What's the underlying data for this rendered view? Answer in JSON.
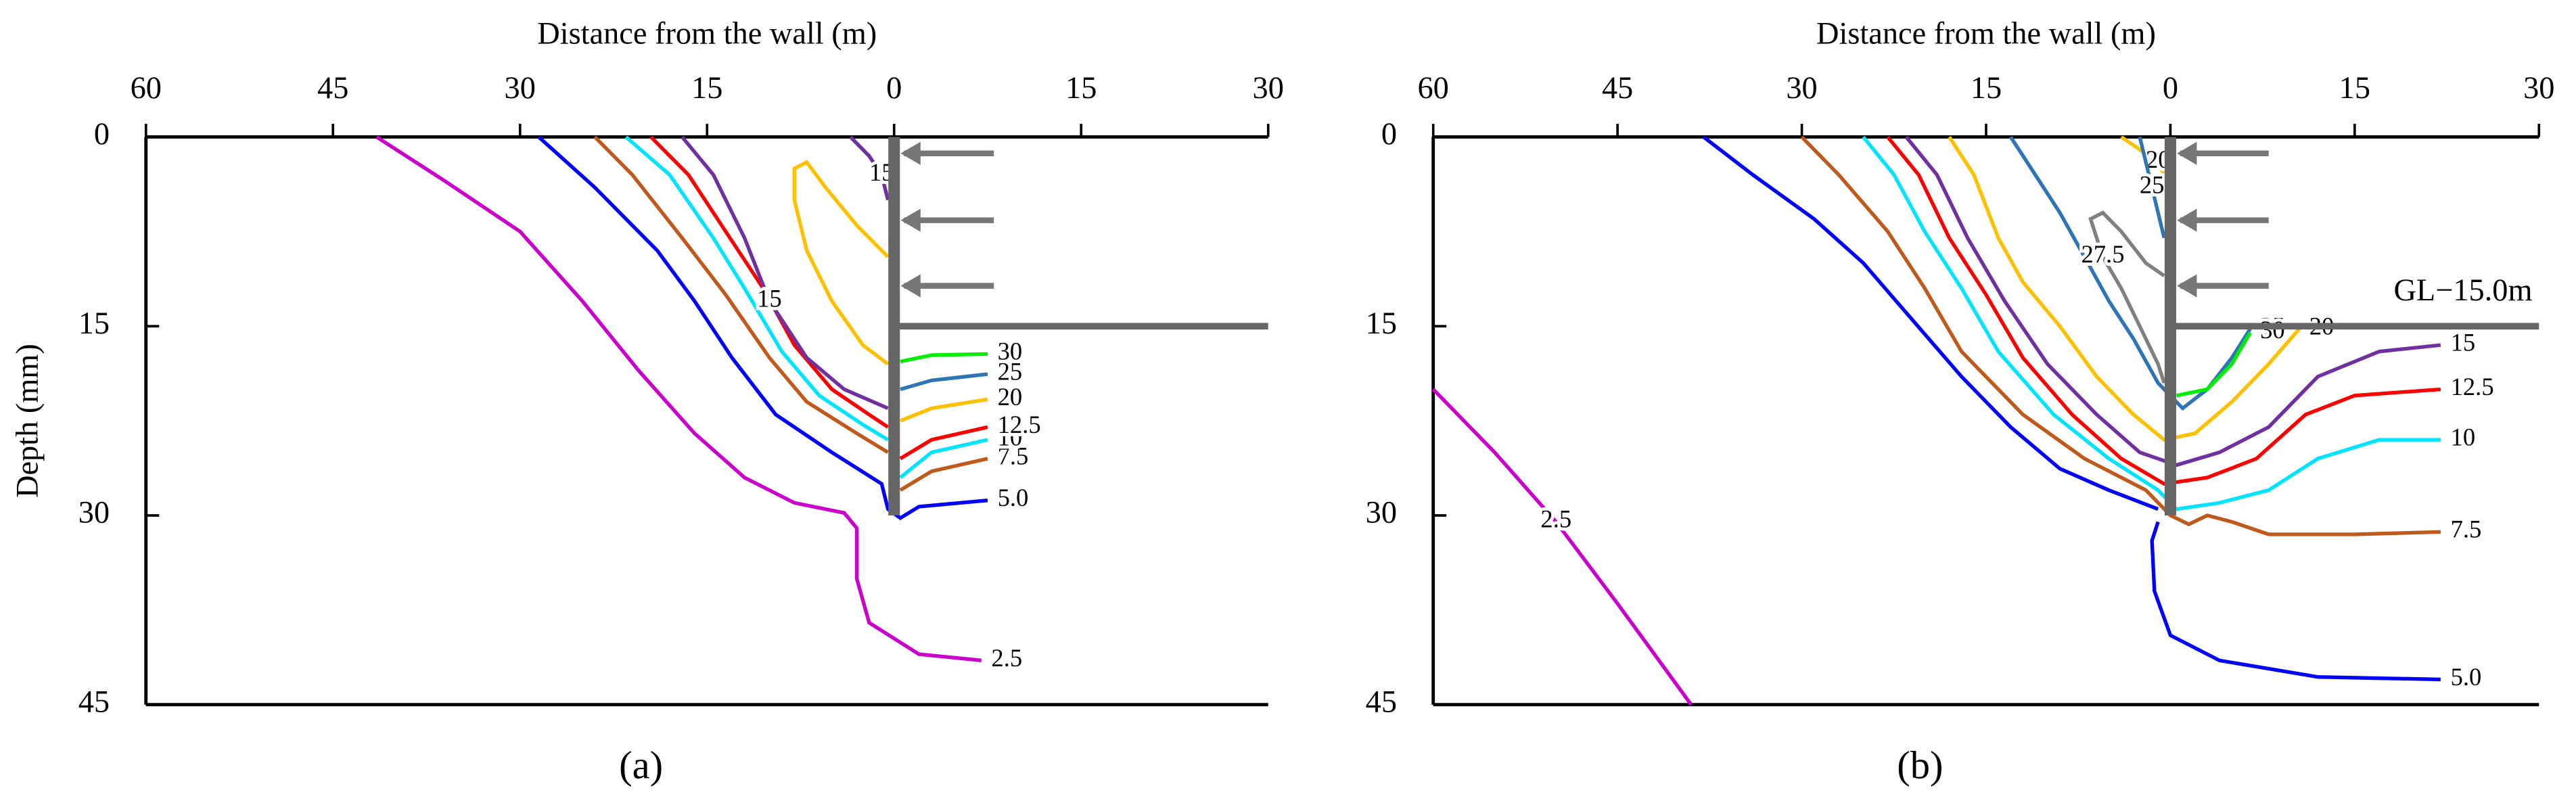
{
  "chart_data": [
    {
      "type": "contour",
      "panel_label": "(a)",
      "x_label": "Distance from the wall (m)",
      "y_label": "Depth (mm)",
      "xlim": [
        -60,
        30
      ],
      "ylim": [
        0,
        45
      ],
      "y_inverted": true,
      "xticks": [
        {
          "value": -60,
          "label": "60"
        },
        {
          "value": -45,
          "label": "45"
        },
        {
          "value": -30,
          "label": "30"
        },
        {
          "value": -15,
          "label": "15"
        },
        0,
        15,
        30
      ],
      "yticks": [
        0,
        15,
        30,
        45
      ],
      "contours": [
        {
          "level": 2.5,
          "color": "#cc00cc",
          "x": [
            -41.5,
            -36,
            -30,
            -25,
            -20.5,
            -16,
            -12,
            -8,
            -4,
            -3,
            -3,
            -2,
            2,
            7
          ],
          "y": [
            0,
            3.5,
            7.5,
            13,
            18.5,
            23.5,
            27,
            29,
            29.8,
            31,
            35,
            38.5,
            41,
            41.5
          ]
        },
        {
          "level": 5,
          "level_label": "5.0",
          "color": "#0000ff",
          "x": [
            -28.5,
            -24,
            -19,
            -16,
            -13,
            -9.5,
            -5,
            -1,
            -0.5,
            0.5,
            2,
            7.5
          ],
          "y": [
            0,
            4,
            9,
            13,
            17.5,
            22,
            25,
            27.5,
            29.5,
            30.2,
            29.3,
            28.8
          ]
        },
        {
          "level": 7.5,
          "color": "#c05a1c",
          "x": [
            -24,
            -21,
            -17,
            -13.5,
            -10,
            -7,
            -3,
            -0.5,
            null,
            0.5,
            3,
            7.5
          ],
          "y": [
            0,
            3,
            8,
            12.5,
            17.5,
            21,
            23.5,
            25,
            null,
            28,
            26.5,
            25.5
          ]
        },
        {
          "level": 10,
          "color": "#00e5ff",
          "x": [
            -21.5,
            -18,
            -14.5,
            -12,
            -9,
            -6,
            -2.5,
            -0.5,
            null,
            0.5,
            3,
            7.5
          ],
          "y": [
            0,
            3,
            8,
            12,
            17,
            20.5,
            22.8,
            24,
            null,
            27,
            25,
            24
          ]
        },
        {
          "level": 12.5,
          "color": "#ff0000",
          "x": [
            -19.5,
            -16.5,
            -13.5,
            -10.5,
            -8,
            -5,
            -2,
            -0.5,
            null,
            0.5,
            3,
            7.5
          ],
          "y": [
            0,
            3,
            7.5,
            12,
            16.5,
            20,
            22,
            23,
            null,
            25.5,
            24,
            23
          ]
        },
        {
          "level": 15,
          "color": "#7030a0",
          "x": [
            -17,
            -14.5,
            -12,
            -10,
            -7,
            -4,
            -0.5
          ],
          "y": [
            0,
            3,
            8,
            13,
            17.5,
            20,
            21.5
          ]
        },
        {
          "level": 15,
          "color": "#7030a0",
          "x": [
            -3.5,
            -2,
            -1,
            -0.5
          ],
          "y": [
            0,
            1.5,
            3,
            5
          ]
        },
        {
          "level": 20,
          "color": "#ffc000",
          "x": [
            -0.5,
            -3,
            -5.5,
            -7,
            -8,
            -8,
            -7,
            -5,
            -2.5,
            -0.5,
            null,
            0.5,
            3,
            7.5
          ],
          "y": [
            9.5,
            7,
            4,
            2,
            2.5,
            5,
            9,
            13,
            16.5,
            18,
            null,
            22.5,
            21.5,
            20.8
          ]
        },
        {
          "level": 25,
          "color": "#2e75b6",
          "x": [
            0.5,
            3,
            7.5
          ],
          "y": [
            20,
            19.3,
            18.8
          ]
        },
        {
          "level": 30,
          "color": "#00ee00",
          "x": [
            0.5,
            3,
            7.5
          ],
          "y": [
            17.8,
            17.3,
            17.2
          ]
        }
      ]
    },
    {
      "type": "contour",
      "panel_label": "(b)",
      "x_label": "Distance from the wall (m)",
      "annotation": "GL−15.0m",
      "xlim": [
        -60,
        30
      ],
      "ylim": [
        0,
        45
      ],
      "y_inverted": true,
      "xticks": [
        {
          "value": -60,
          "label": "60"
        },
        {
          "value": -45,
          "label": "45"
        },
        {
          "value": -30,
          "label": "30"
        },
        {
          "value": -15,
          "label": "15"
        },
        0,
        15,
        30
      ],
      "yticks": [
        0,
        15,
        30,
        45
      ],
      "contours": [
        {
          "level": 2.5,
          "color": "#cc00cc",
          "x": [
            -60,
            -55,
            -50,
            -45,
            -39
          ],
          "y": [
            20,
            25,
            30.5,
            37,
            45
          ]
        },
        {
          "level": 5,
          "level_label": "5.0",
          "color": "#0000ff",
          "x": [
            -38,
            -34,
            -29,
            -25,
            -21,
            -17,
            -13,
            -9,
            -5,
            -1,
            null,
            -1,
            -1.5,
            -1.3,
            0,
            4,
            12,
            22
          ],
          "y": [
            0,
            3,
            6.5,
            10,
            14.5,
            19,
            23,
            26.3,
            28,
            29.5,
            null,
            30.5,
            32,
            36,
            39.5,
            41.5,
            42.8,
            43
          ]
        },
        {
          "level": 7.5,
          "color": "#c05a1c",
          "x": [
            -30,
            -27,
            -23,
            -20,
            -17,
            -12,
            -7,
            -2,
            0,
            1.5,
            3,
            5,
            8,
            15,
            22
          ],
          "y": [
            0,
            3,
            7.5,
            12,
            17,
            22,
            25.5,
            28,
            30,
            30.7,
            30,
            30.5,
            31.5,
            31.5,
            31.3
          ]
        },
        {
          "level": 10,
          "color": "#00e5ff",
          "x": [
            -25,
            -22.5,
            -20,
            -17,
            -14,
            -9.5,
            -5,
            -1,
            0.5,
            4,
            8,
            12,
            17,
            22
          ],
          "y": [
            0,
            3,
            7.5,
            12,
            17,
            22,
            25.5,
            28,
            29.5,
            29,
            28,
            25.5,
            24,
            24
          ]
        },
        {
          "level": 12.5,
          "color": "#ff0000",
          "x": [
            -23,
            -20.5,
            -18,
            -15,
            -12,
            -8,
            -4,
            -0.5,
            3,
            7,
            11,
            15,
            22
          ],
          "y": [
            0,
            3,
            8,
            12.5,
            17.5,
            22,
            25.5,
            27.5,
            27,
            25.5,
            22,
            20.5,
            20
          ]
        },
        {
          "level": 15,
          "color": "#7030a0",
          "x": [
            -21.5,
            -19,
            -16.5,
            -13.5,
            -10,
            -6,
            -2.5,
            0.5,
            4,
            8,
            12,
            17,
            22
          ],
          "y": [
            0,
            3,
            8,
            13,
            18,
            22,
            25,
            26,
            25,
            23,
            19,
            17,
            16.5
          ]
        },
        {
          "level": 20,
          "color": "#ffc000",
          "x": [
            -18,
            -16,
            -14,
            -12,
            -9,
            -6,
            -3,
            -0.5,
            2,
            5,
            8,
            10.5
          ],
          "y": [
            0,
            3,
            8,
            11.5,
            15,
            19,
            22,
            24,
            23.5,
            21,
            18,
            15.2
          ]
        },
        {
          "level": 20,
          "color": "#ffc000",
          "x": [
            -4,
            -2.5,
            -1,
            -0.5
          ],
          "y": [
            0,
            1,
            2,
            3
          ]
        },
        {
          "level": 25,
          "color": "#2e75b6",
          "x": [
            -13,
            -11,
            -9,
            -7,
            -5,
            -3,
            -1,
            1,
            3,
            5,
            6.5
          ],
          "y": [
            0,
            3,
            6,
            9.5,
            13,
            16,
            19.5,
            21.5,
            20,
            17.5,
            15.2
          ]
        },
        {
          "level": 25,
          "color": "#2e75b6",
          "x": [
            -2.5,
            -1.5,
            -0.5
          ],
          "y": [
            0,
            4,
            8
          ]
        },
        {
          "level": 27.5,
          "color": "#808080",
          "x": [
            -0.5,
            -2,
            -4,
            -5.5,
            -6.5,
            -5.5,
            -4,
            -2.5,
            -1,
            -0.5
          ],
          "y": [
            11,
            10,
            7.5,
            6,
            6.5,
            9.5,
            12,
            15,
            18,
            19.5
          ]
        },
        {
          "level": 30,
          "color": "#00ee00",
          "x": [
            0.5,
            3,
            5,
            6.5
          ],
          "y": [
            20.5,
            20,
            18,
            15.5
          ]
        }
      ]
    }
  ]
}
